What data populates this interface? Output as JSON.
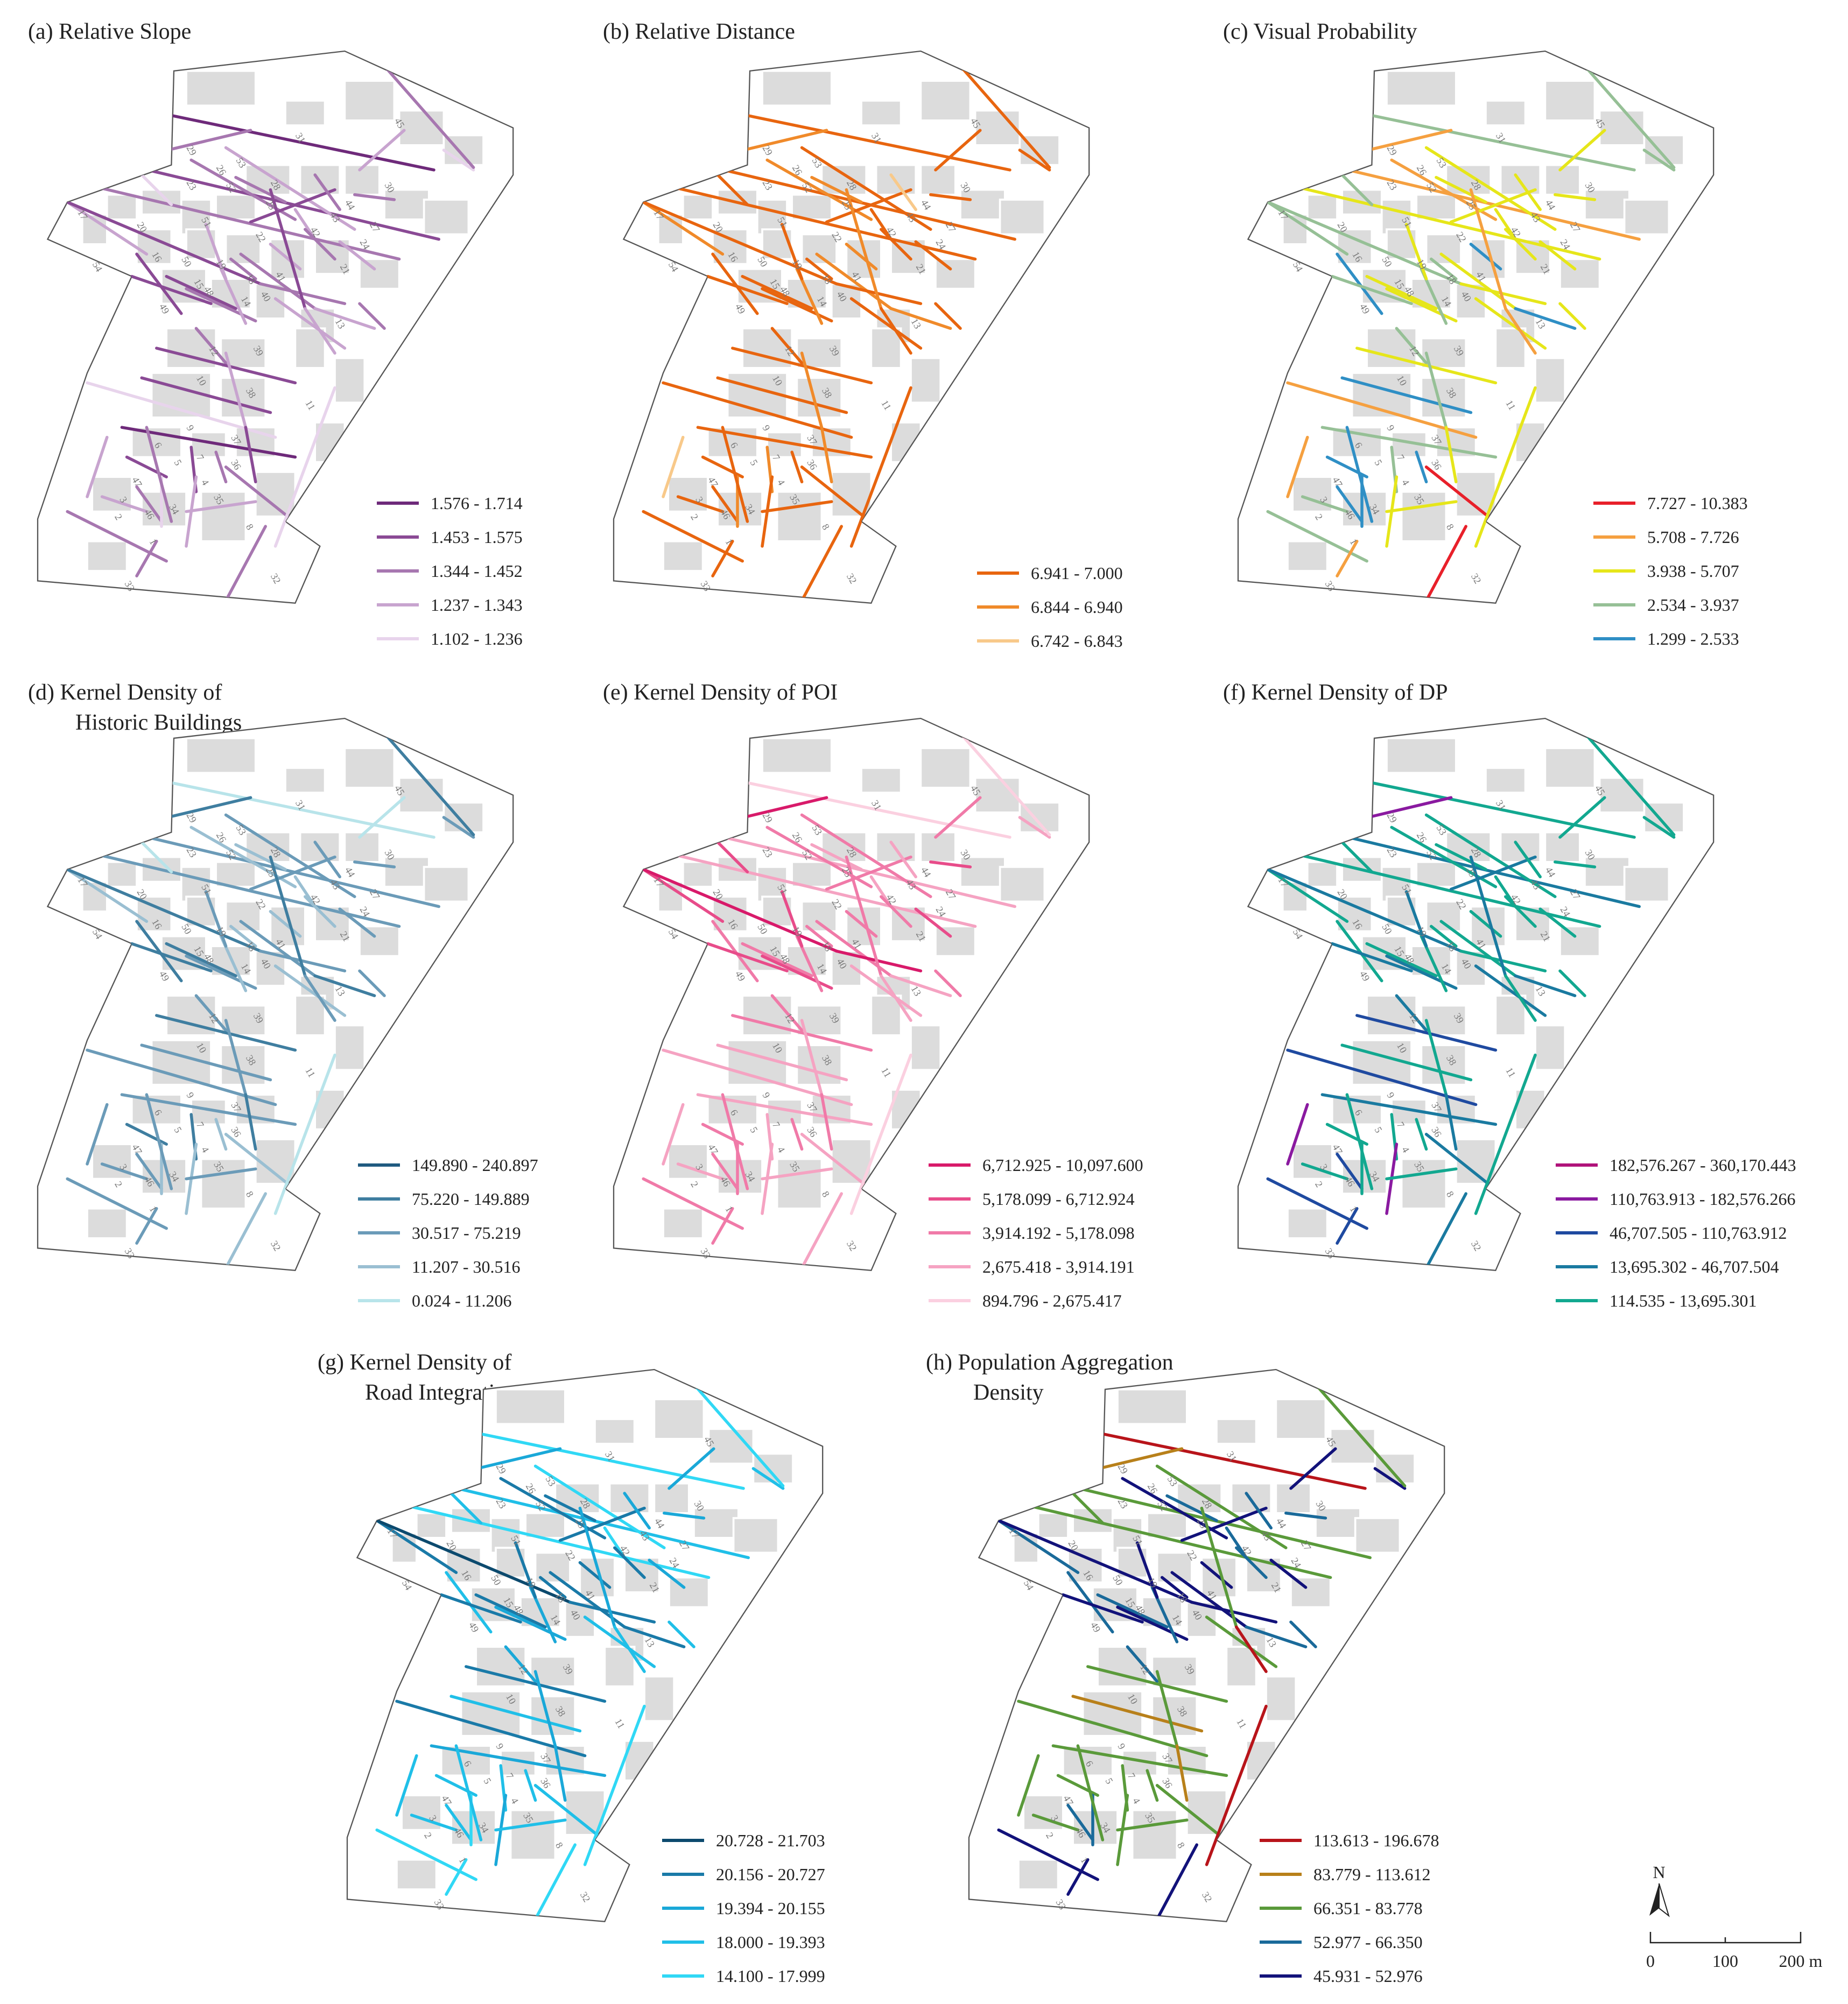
{
  "panels": [
    {
      "id": "a",
      "title_lines": [
        "(a)  Relative Slope"
      ],
      "legend": [
        {
          "label": "1.576 - 1.714",
          "color": "#6e2a7a"
        },
        {
          "label": "1.453 - 1.575",
          "color": "#8a4a95"
        },
        {
          "label": "1.344 - 1.452",
          "color": "#a777b0"
        },
        {
          "label": "1.237 - 1.343",
          "color": "#c8a4cf"
        },
        {
          "label": "1.102 - 1.236",
          "color": "#e8d4ec"
        }
      ]
    },
    {
      "id": "b",
      "title_lines": [
        "(b)  Relative Distance"
      ],
      "legend": [
        {
          "label": "6.941 - 7.000",
          "color": "#e8650f"
        },
        {
          "label": "6.844 - 6.940",
          "color": "#f08a2a"
        },
        {
          "label": "6.742 - 6.843",
          "color": "#f8c98a"
        }
      ]
    },
    {
      "id": "c",
      "title_lines": [
        "(c)  Visual Probability"
      ],
      "legend": [
        {
          "label": "7.727 - 10.383",
          "color": "#e8202a"
        },
        {
          "label": "5.708 - 7.726",
          "color": "#f5a040"
        },
        {
          "label": "3.938 - 5.707",
          "color": "#e6e61a"
        },
        {
          "label": "2.534 - 3.937",
          "color": "#96c096"
        },
        {
          "label": "1.299 - 2.533",
          "color": "#2f8fc5"
        }
      ]
    },
    {
      "id": "d",
      "title_lines": [
        "(d)  Kernel Density of",
        "Historic Buildings"
      ],
      "legend": [
        {
          "label": "149.890 - 240.897",
          "color": "#1f5a80"
        },
        {
          "label": "75.220 - 149.889",
          "color": "#3f7ea0"
        },
        {
          "label": "30.517 - 75.219",
          "color": "#6b9bb8"
        },
        {
          "label": "11.207 - 30.516",
          "color": "#9abfd2"
        },
        {
          "label": "0.024 - 11.206",
          "color": "#b8e4ea"
        }
      ]
    },
    {
      "id": "e",
      "title_lines": [
        "(e)  Kernel Density of POI"
      ],
      "legend": [
        {
          "label": "6,712.925 - 10,097.600",
          "color": "#d81a6a"
        },
        {
          "label": "5,178.099 - 6,712.924",
          "color": "#e84c8a"
        },
        {
          "label": "3,914.192 - 5,178.098",
          "color": "#f07aa8"
        },
        {
          "label": "2,675.418 - 3,914.191",
          "color": "#f5a3c2"
        },
        {
          "label": "894.796 - 2,675.417",
          "color": "#fbd0e0"
        }
      ]
    },
    {
      "id": "f",
      "title_lines": [
        "(f)  Kernel Density of DP"
      ],
      "legend": [
        {
          "label": "182,576.267 - 360,170.443",
          "color": "#b0127a"
        },
        {
          "label": "110,763.913 - 182,576.266",
          "color": "#8a1aa0"
        },
        {
          "label": "46,707.505 - 110,763.912",
          "color": "#1f4aa0"
        },
        {
          "label": "13,695.302 - 46,707.504",
          "color": "#1a7aa0"
        },
        {
          "label": "114.535 - 13,695.301",
          "color": "#12a890"
        }
      ]
    },
    {
      "id": "g",
      "title_lines": [
        "(g)  Kernel Density of",
        "Road Integration"
      ],
      "legend": [
        {
          "label": "20.728 - 21.703",
          "color": "#0c4a6e"
        },
        {
          "label": "20.156 - 20.727",
          "color": "#1a7aa8"
        },
        {
          "label": "19.394 - 20.155",
          "color": "#1aa8d8"
        },
        {
          "label": "18.000 - 19.393",
          "color": "#20bfe8"
        },
        {
          "label": "14.100 - 17.999",
          "color": "#30d8f5"
        }
      ]
    },
    {
      "id": "h",
      "title_lines": [
        "(h)  Population Aggregation",
        "Density"
      ],
      "legend": [
        {
          "label": "113.613 - 196.678",
          "color": "#b8141a"
        },
        {
          "label": "83.779 - 113.612",
          "color": "#b8801a"
        },
        {
          "label": "66.351 - 83.778",
          "color": "#5a9a3a"
        },
        {
          "label": "52.977 - 66.350",
          "color": "#1a6a9a"
        },
        {
          "label": "45.931 - 52.976",
          "color": "#12127a"
        }
      ]
    }
  ],
  "road_labels": [
    "31",
    "45",
    "29",
    "53",
    "28",
    "30",
    "26",
    "44",
    "23",
    "52",
    "25",
    "43",
    "27",
    "17",
    "20",
    "51",
    "22",
    "42",
    "24",
    "54",
    "16",
    "50",
    "19",
    "18",
    "41",
    "21",
    "49",
    "15",
    "48",
    "14",
    "40",
    "13",
    "12",
    "39",
    "10",
    "38",
    "11",
    "9",
    "37",
    "7",
    "6",
    "5",
    "36",
    "47",
    "4",
    "35",
    "3",
    "46",
    "2",
    "34",
    "1",
    "8",
    "33",
    "32"
  ],
  "scale_bar": {
    "north_label": "N",
    "ticks": [
      "0",
      "100",
      "200 m"
    ]
  }
}
